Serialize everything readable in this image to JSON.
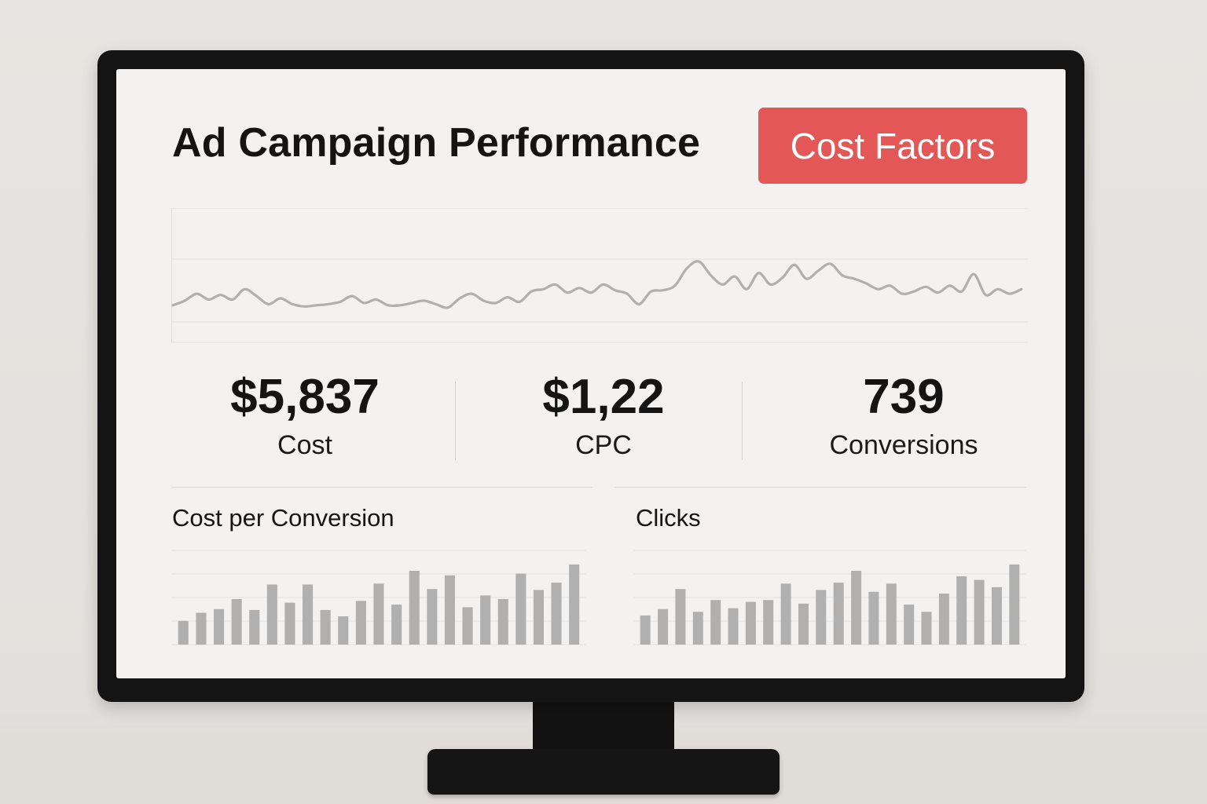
{
  "header": {
    "title": "Ad Campaign Performance",
    "cost_factors_label": "Cost Factors"
  },
  "colors": {
    "accent": "#e35757",
    "chart_gray": "#b0b0b0"
  },
  "kpis": [
    {
      "value": "$5,837",
      "label": "Cost"
    },
    {
      "value": "$1,22",
      "label": "CPC"
    },
    {
      "value": "739",
      "label": "Conversions"
    }
  ],
  "sections": {
    "cost_per_conversion": "Cost per Conversion",
    "clicks": "Clicks"
  },
  "chart_data": [
    {
      "type": "line",
      "title": "",
      "xlabel": "",
      "ylabel": "",
      "ylim": [
        0,
        100
      ],
      "grid": true,
      "x": [
        1,
        2,
        3,
        4,
        5,
        6,
        7,
        8,
        9,
        10,
        11,
        12,
        13,
        14,
        15,
        16,
        17,
        18,
        19,
        20,
        21,
        22,
        23,
        24,
        25,
        26,
        27,
        28,
        29,
        30,
        31,
        32,
        33,
        34,
        35,
        36,
        37,
        38,
        39,
        40,
        41,
        42,
        43,
        44,
        45,
        46,
        47,
        48,
        49,
        50,
        51,
        52,
        53,
        54,
        55,
        56,
        57,
        58,
        59,
        60,
        61,
        62,
        63,
        64,
        65,
        66,
        67,
        68,
        69,
        70,
        71,
        72
      ],
      "series": [
        {
          "values": [
            28,
            32,
            38,
            33,
            37,
            33,
            42,
            36,
            29,
            34,
            29,
            27,
            28,
            29,
            31,
            36,
            30,
            33,
            28,
            28,
            30,
            32,
            29,
            26,
            34,
            38,
            32,
            30,
            35,
            31,
            40,
            42,
            46,
            39,
            43,
            39,
            46,
            41,
            38,
            29,
            40,
            41,
            45,
            60,
            66,
            54,
            46,
            53,
            42,
            56,
            46,
            52,
            63,
            51,
            58,
            64,
            54,
            51,
            47,
            42,
            45,
            38,
            40,
            44,
            39,
            45,
            40,
            55,
            37,
            42,
            38,
            42
          ]
        }
      ]
    },
    {
      "type": "bar",
      "title": "",
      "xlabel": "",
      "ylabel": "",
      "ylim": [
        0,
        100
      ],
      "grid": true,
      "categories": [
        "1",
        "2",
        "3",
        "4",
        "5",
        "6",
        "7",
        "8",
        "9",
        "10",
        "11",
        "12",
        "13",
        "14",
        "15",
        "16",
        "17",
        "18",
        "19",
        "20",
        "21",
        "22",
        "23"
      ],
      "values": [
        26,
        35,
        39,
        50,
        38,
        66,
        46,
        66,
        38,
        31,
        48,
        67,
        44,
        81,
        61,
        76,
        41,
        54,
        50,
        78,
        60,
        68,
        88
      ]
    },
    {
      "type": "bar",
      "title": "",
      "xlabel": "",
      "ylabel": "",
      "ylim": [
        0,
        100
      ],
      "grid": true,
      "categories": [
        "1",
        "2",
        "3",
        "4",
        "5",
        "6",
        "7",
        "8",
        "9",
        "10",
        "11",
        "12",
        "13",
        "14",
        "15",
        "16",
        "17",
        "18",
        "19",
        "20",
        "21",
        "22"
      ],
      "values": [
        32,
        39,
        61,
        36,
        49,
        40,
        47,
        49,
        67,
        45,
        60,
        68,
        81,
        58,
        67,
        44,
        36,
        56,
        75,
        71,
        63,
        88
      ]
    }
  ]
}
